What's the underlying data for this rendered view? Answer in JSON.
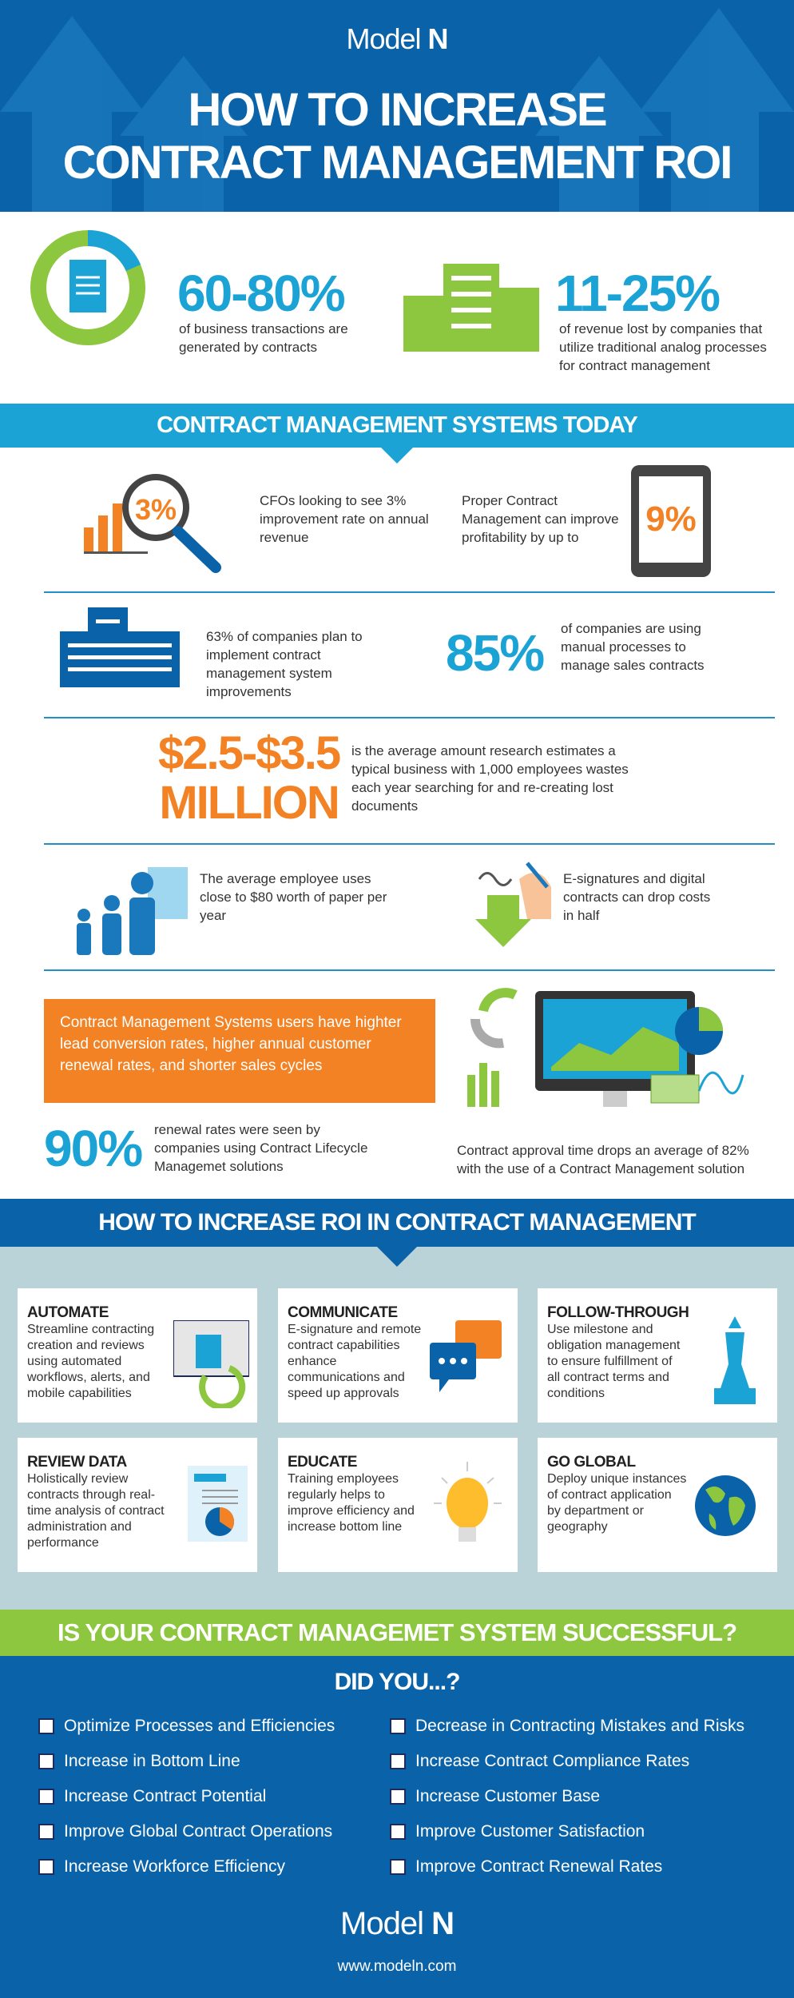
{
  "header": {
    "logo": "Model",
    "logo_bold": "N",
    "title_line1": "HOW TO INCREASE",
    "title_line2": "CONTRACT MANAGEMENT ROI"
  },
  "stats": [
    {
      "value": "60-80%",
      "text": "of business transactions are generated by contracts"
    },
    {
      "value": "11-25%",
      "text": "of revenue lost by companies that utilize traditional analog processes for contract management"
    }
  ],
  "today": {
    "title": "CONTRACT MANAGEMENT SYSTEMS TODAY",
    "cfo": {
      "icon_value": "3%",
      "text": "CFOs looking to see 3% improvement rate on annual revenue"
    },
    "profit": {
      "text": "Proper Contract Management can improve profitability by up to",
      "value": "9%"
    },
    "plan": {
      "text": "63% of companies plan to implement contract management system improvements"
    },
    "manual": {
      "value": "85%",
      "text": "of companies are using manual processes to manage sales contracts"
    },
    "waste": {
      "value_line1": "$2.5-$3.5",
      "value_line2": "MILLION",
      "text": "is the average amount research estimates a typical business with 1,000 employees wastes each year searching for and re-creating lost documents"
    },
    "paper": {
      "text": "The average employee uses close to $80 worth of paper per year"
    },
    "esign": {
      "text": "E-signatures and digital contracts can drop costs in half"
    },
    "callout": "Contract Management Systems users have highter lead conversion rates, higher annual customer renewal rates, and shorter sales cycles",
    "renewal": {
      "value": "90%",
      "text": "renewal rates were seen by companies using Contract Lifecycle Managemet solutions"
    },
    "approval": "Contract approval time drops an average of 82% with the use of a Contract Management solution"
  },
  "roi": {
    "title": "HOW TO INCREASE ROI IN CONTRACT MANAGEMENT",
    "cards": [
      {
        "title": "AUTOMATE",
        "text": "Streamline contracting creation and reviews using automated workflows, alerts, and mobile capabilities",
        "icon": "document-cycle-icon"
      },
      {
        "title": "COMMUNICATE",
        "text": "E-signature and remote contract capabilities enhance communications and speed up approvals",
        "icon": "chat-bubbles-icon"
      },
      {
        "title": "FOLLOW-THROUGH",
        "text": "Use milestone and obligation management to ensure fulfillment of all contract terms and conditions",
        "icon": "chess-queen-icon"
      },
      {
        "title": "REVIEW DATA",
        "text": "Holistically review contracts through real-time analysis of contract administration and performance",
        "icon": "report-pie-icon"
      },
      {
        "title": "EDUCATE",
        "text": "Training employees regularly helps to improve efficiency and increase bottom line",
        "icon": "lightbulb-icon"
      },
      {
        "title": "GO GLOBAL",
        "text": "Deploy unique instances of contract application by department or geography",
        "icon": "globe-icon"
      }
    ]
  },
  "success": {
    "title": "IS YOUR CONTRACT MANAGEMET SYSTEM SUCCESSFUL?",
    "subtitle": "DID YOU...?",
    "left": [
      "Optimize Processes and Efficiencies",
      "Increase in Bottom Line",
      "Increase Contract Potential",
      "Improve Global Contract Operations",
      "Increase Workforce Efficiency"
    ],
    "right": [
      "Decrease in Contracting Mistakes and Risks",
      "Increase Contract Compliance Rates",
      "Increase Customer Base",
      "Improve Customer Satisfaction",
      "Improve Contract Renewal Rates"
    ]
  },
  "footer": {
    "logo": "Model",
    "logo_bold": "N",
    "url": "www.modeln.com"
  },
  "colors": {
    "blue": "#0a63a8",
    "teal": "#1ba3d6",
    "green": "#8dc63f",
    "orange": "#f28224",
    "grey_bg": "#b9d3d9"
  }
}
